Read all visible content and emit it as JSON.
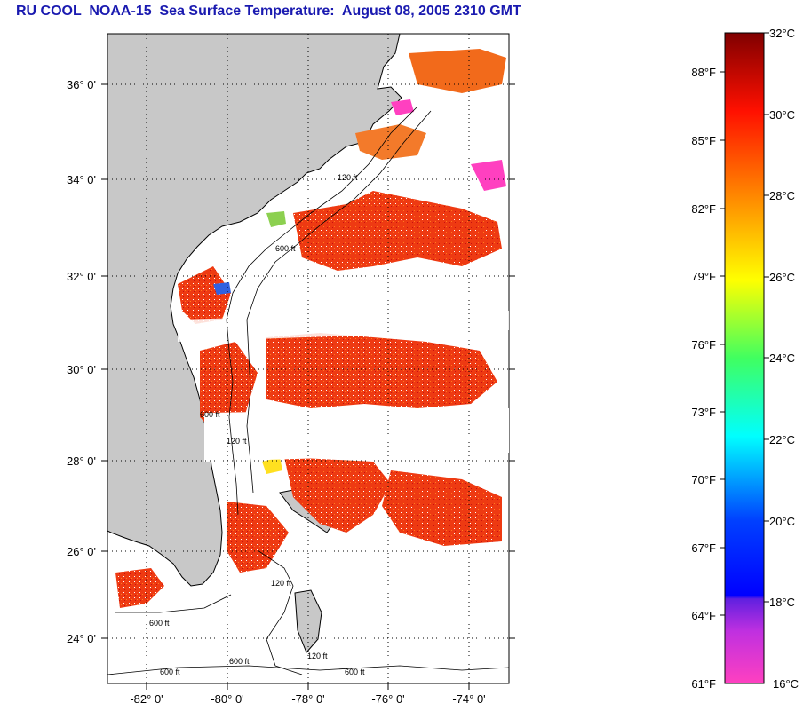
{
  "title": "RU COOL  NOAA-15  Sea Surface Temperature:  August 08, 2005 2310 GMT",
  "map": {
    "lat_labels": [
      "36° 0'",
      "34° 0'",
      "32° 0'",
      "30° 0'",
      "28° 0'",
      "26° 0'",
      "24° 0'"
    ],
    "lon_labels": [
      "-82° 0'",
      "-80° 0'",
      "-78° 0'",
      "-76° 0'",
      "-74° 0'"
    ],
    "contour_labels": [
      "120 ft",
      "600 ft",
      "600 ft",
      "120 ft",
      "600 ft",
      "600 ft",
      "120 ft",
      "600 ft",
      "600 ft",
      "120 ft"
    ],
    "colors": {
      "land": "#c8c8c8",
      "ocean": "#ffffff",
      "sst_warm": "#ee2a10",
      "sst_hot": "#dd1010",
      "sst_orange": "#f26a1b"
    }
  },
  "colorbar": {
    "fahrenheit_labels": [
      "88°F",
      "85°F",
      "82°F",
      "79°F",
      "76°F",
      "73°F",
      "70°F",
      "67°F",
      "64°F",
      "61°F"
    ],
    "celsius_labels": [
      "32°C",
      "30°C",
      "28°C",
      "26°C",
      "24°C",
      "22°C",
      "20°C",
      "18°C",
      "16°C"
    ],
    "range_c": [
      16,
      32
    ]
  }
}
